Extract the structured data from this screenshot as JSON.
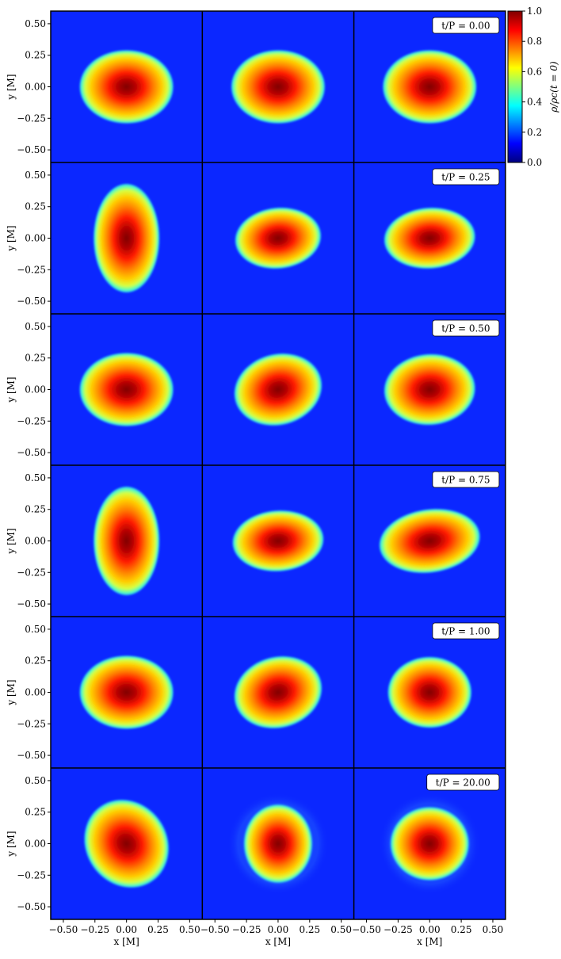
{
  "chart_data": {
    "type": "heatmap",
    "description_rows": "time snapshots",
    "xlabel": "x [M]",
    "ylabel": "y [M]",
    "xlim": [
      -0.6,
      0.6
    ],
    "ylim": [
      -0.6,
      0.6
    ],
    "x_ticks": [
      -0.5,
      -0.25,
      0.0,
      0.25,
      0.5
    ],
    "x_tick_labels": [
      "−0.50",
      "−0.25",
      "0.00",
      "0.25",
      "0.50"
    ],
    "y_ticks": [
      0.5,
      0.25,
      0.0,
      -0.25,
      -0.5
    ],
    "y_tick_labels": [
      "0.50",
      "0.25",
      "0.00",
      "−0.25",
      "−0.50"
    ],
    "time_labels": [
      "t/P = 0.00",
      "t/P = 0.25",
      "t/P = 0.50",
      "t/P = 0.75",
      "t/P = 1.00",
      "t/P = 20.00"
    ],
    "colorbar": {
      "label": "ρ/ρc(t = 0)",
      "range": [
        0.0,
        1.0
      ],
      "ticks": [
        0.0,
        0.2,
        0.4,
        0.6,
        0.8,
        1.0
      ],
      "tick_labels": [
        "0.0",
        "0.2",
        "0.4",
        "0.6",
        "0.8",
        "1.0"
      ],
      "colormap": "jet"
    },
    "panels": [
      [
        {
          "rx": 0.37,
          "ry": 0.29,
          "rot": 0,
          "cx": 0,
          "cy": 0,
          "halo": 0
        },
        {
          "rx": 0.37,
          "ry": 0.29,
          "rot": 0,
          "cx": 0,
          "cy": 0,
          "halo": 0
        },
        {
          "rx": 0.37,
          "ry": 0.29,
          "rot": 0,
          "cx": 0,
          "cy": 0,
          "halo": 0
        }
      ],
      [
        {
          "rx": 0.26,
          "ry": 0.43,
          "rot": 0,
          "cx": 0,
          "cy": 0,
          "halo": 0
        },
        {
          "rx": 0.34,
          "ry": 0.24,
          "rot": -6,
          "cx": 0,
          "cy": 0,
          "halo": 0
        },
        {
          "rx": 0.36,
          "ry": 0.24,
          "rot": -4,
          "cx": 0,
          "cy": 0,
          "halo": 0
        }
      ],
      [
        {
          "rx": 0.37,
          "ry": 0.29,
          "rot": 0,
          "cx": 0,
          "cy": 0,
          "halo": 0
        },
        {
          "rx": 0.35,
          "ry": 0.28,
          "rot": -15,
          "cx": 0,
          "cy": 0,
          "halo": 0
        },
        {
          "rx": 0.36,
          "ry": 0.28,
          "rot": -4,
          "cx": 0,
          "cy": 0,
          "halo": 0
        }
      ],
      [
        {
          "rx": 0.26,
          "ry": 0.43,
          "rot": 0,
          "cx": 0,
          "cy": 0,
          "halo": 0
        },
        {
          "rx": 0.36,
          "ry": 0.24,
          "rot": -4,
          "cx": 0,
          "cy": 0,
          "halo": 0
        },
        {
          "rx": 0.4,
          "ry": 0.25,
          "rot": -8,
          "cx": 0,
          "cy": 0,
          "halo": 0
        }
      ],
      [
        {
          "rx": 0.37,
          "ry": 0.29,
          "rot": 0,
          "cx": 0,
          "cy": 0,
          "halo": 0
        },
        {
          "rx": 0.35,
          "ry": 0.28,
          "rot": -15,
          "cx": 0,
          "cy": 0,
          "halo": 0
        },
        {
          "rx": 0.33,
          "ry": 0.28,
          "rot": 0,
          "cx": 0,
          "cy": 0,
          "halo": 0
        }
      ],
      [
        {
          "rx": 0.32,
          "ry": 0.36,
          "rot": -35,
          "cx": 0,
          "cy": 0,
          "halo": 0.35
        },
        {
          "rx": 0.27,
          "ry": 0.31,
          "rot": 0,
          "cx": 0,
          "cy": 0,
          "halo": 0.4
        },
        {
          "rx": 0.31,
          "ry": 0.29,
          "rot": 0,
          "cx": 0,
          "cy": 0,
          "halo": 0.4
        }
      ]
    ]
  },
  "colors": {
    "background_blue": "#0b27ff",
    "halo_blue": "#1a4cff",
    "jet_stops": [
      "#00007f",
      "#0000ff",
      "#007fff",
      "#00ffff",
      "#7fff7f",
      "#ffff00",
      "#ff7f00",
      "#ff0000",
      "#7f0000"
    ]
  }
}
